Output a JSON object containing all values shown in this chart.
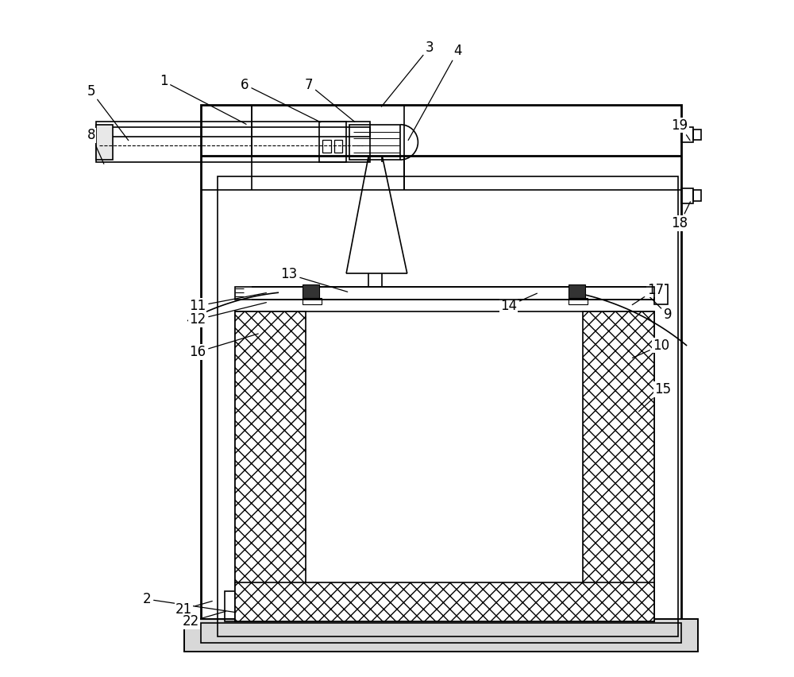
{
  "bg": "#ffffff",
  "lc": "#000000",
  "lw": 1.2,
  "tlw": 2.0,
  "fs": 12,
  "labels": {
    "1": {
      "lxy": [
        0.28,
        0.815
      ],
      "txy": [
        0.155,
        0.88
      ]
    },
    "2": {
      "lxy": [
        0.265,
        0.095
      ],
      "txy": [
        0.13,
        0.115
      ]
    },
    "3": {
      "lxy": [
        0.475,
        0.84
      ],
      "txy": [
        0.548,
        0.93
      ]
    },
    "4": {
      "lxy": [
        0.515,
        0.79
      ],
      "txy": [
        0.59,
        0.925
      ]
    },
    "5": {
      "lxy": [
        0.105,
        0.79
      ],
      "txy": [
        0.048,
        0.865
      ]
    },
    "6": {
      "lxy": [
        0.39,
        0.818
      ],
      "txy": [
        0.275,
        0.875
      ]
    },
    "7": {
      "lxy": [
        0.44,
        0.818
      ],
      "txy": [
        0.37,
        0.875
      ]
    },
    "8": {
      "lxy": [
        0.068,
        0.755
      ],
      "txy": [
        0.048,
        0.8
      ]
    },
    "9": {
      "lxy": [
        0.87,
        0.565
      ],
      "txy": [
        0.9,
        0.535
      ]
    },
    "10": {
      "lxy": [
        0.845,
        0.47
      ],
      "txy": [
        0.89,
        0.49
      ]
    },
    "11": {
      "lxy": [
        0.31,
        0.568
      ],
      "txy": [
        0.205,
        0.548
      ]
    },
    "12": {
      "lxy": [
        0.31,
        0.554
      ],
      "txy": [
        0.205,
        0.528
      ]
    },
    "13": {
      "lxy": [
        0.43,
        0.568
      ],
      "txy": [
        0.34,
        0.595
      ]
    },
    "14": {
      "lxy": [
        0.71,
        0.568
      ],
      "txy": [
        0.665,
        0.548
      ]
    },
    "15": {
      "lxy": [
        0.855,
        0.39
      ],
      "txy": [
        0.893,
        0.425
      ]
    },
    "16": {
      "lxy": [
        0.298,
        0.508
      ],
      "txy": [
        0.205,
        0.48
      ]
    },
    "17": {
      "lxy": [
        0.845,
        0.548
      ],
      "txy": [
        0.882,
        0.572
      ]
    },
    "18": {
      "lxy": [
        0.935,
        0.705
      ],
      "txy": [
        0.918,
        0.67
      ]
    },
    "19": {
      "lxy": [
        0.935,
        0.79
      ],
      "txy": [
        0.918,
        0.815
      ]
    },
    "21": {
      "lxy": [
        0.23,
        0.113
      ],
      "txy": [
        0.185,
        0.1
      ]
    },
    "22": {
      "lxy": [
        0.25,
        0.098
      ],
      "txy": [
        0.195,
        0.082
      ]
    }
  }
}
